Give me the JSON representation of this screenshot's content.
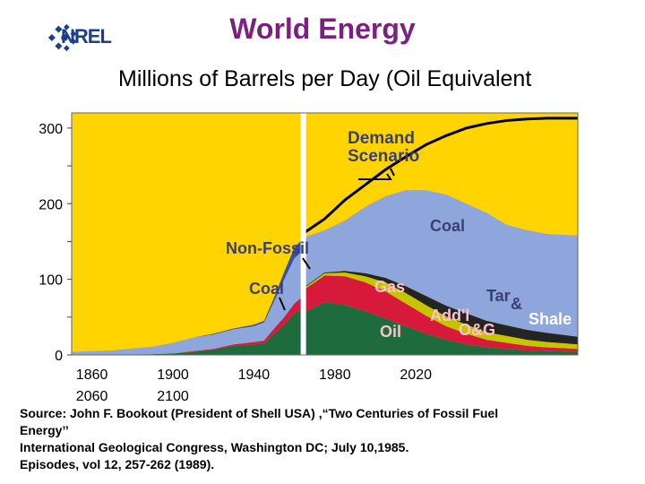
{
  "header": {
    "logo_text": "NREL",
    "title": "World Energy",
    "subtitle": "Millions of Barrels per Day (Oil Equivalent"
  },
  "chart_data": {
    "type": "area",
    "title": "World Energy",
    "ylabel": "Millions of Barrels per Day (Oil Equivalent",
    "ylim": [
      0,
      320
    ],
    "xlim": [
      1850,
      2100
    ],
    "y_ticks": [
      0,
      100,
      200,
      300
    ],
    "x_ticks": [
      1860,
      1900,
      1940,
      1980,
      2020
    ],
    "x_tick_labels_row1": [
      "1860",
      "1900",
      "1940",
      "1980",
      "2020"
    ],
    "x_tick_labels_row2": [
      "2060",
      "2100"
    ],
    "break_at": 1964,
    "historical": {
      "x": [
        1850,
        1870,
        1890,
        1900,
        1910,
        1920,
        1930,
        1940,
        1945,
        1950,
        1955,
        1960,
        1964
      ],
      "series": [
        {
          "name": "Oil",
          "values": [
            0,
            0,
            1,
            2,
            4,
            7,
            12,
            14,
            15,
            28,
            40,
            55,
            62
          ]
        },
        {
          "name": "Gas",
          "values": [
            0,
            0,
            0,
            0,
            1,
            1,
            2,
            3,
            4,
            7,
            10,
            13,
            15
          ]
        },
        {
          "name": "Coal",
          "values": [
            4,
            6,
            10,
            14,
            18,
            19,
            20,
            21,
            24,
            36,
            50,
            60,
            60
          ]
        },
        {
          "name": "Non-Fossil",
          "values": [
            0,
            0,
            0,
            0,
            0,
            1,
            1,
            2,
            2,
            5,
            10,
            14,
            16
          ]
        }
      ]
    },
    "scenario": {
      "x": [
        1964,
        1975,
        1985,
        1995,
        2005,
        2015,
        2025,
        2035,
        2045,
        2055,
        2065,
        2075,
        2085,
        2100
      ],
      "oil": [
        55,
        70,
        66,
        58,
        48,
        38,
        28,
        20,
        14,
        10,
        8,
        6,
        5,
        4
      ],
      "gas": [
        30,
        35,
        38,
        38,
        36,
        30,
        24,
        18,
        14,
        10,
        8,
        6,
        5,
        4
      ],
      "addl_og": [
        2,
        3,
        5,
        8,
        12,
        14,
        14,
        13,
        12,
        10,
        9,
        8,
        7,
        6
      ],
      "tar_shale": [
        1,
        1,
        2,
        4,
        6,
        9,
        12,
        14,
        15,
        15,
        14,
        13,
        12,
        10
      ],
      "coal_top": [
        155,
        165,
        178,
        196,
        210,
        218,
        218,
        212,
        200,
        188,
        172,
        165,
        160,
        158
      ],
      "demand": [
        160,
        180,
        205,
        225,
        245,
        262,
        278,
        290,
        300,
        306,
        310,
        312,
        313,
        313
      ]
    },
    "labels": [
      "Demand Scenario",
      "Coal",
      "Non-Fossil",
      "Coal",
      "Gas",
      "Tar",
      "&",
      "Shale",
      "Add'l",
      "O&G",
      "Oil"
    ],
    "colors": {
      "background": "#ffd400",
      "oil": "#1e6b3e",
      "gas": "#d7193c",
      "coal": "#8fa6dc",
      "coal_dark": "#5f7cc8",
      "non_fossil": "#3350b0",
      "addl_og": "#c4c400",
      "tar_shale": "#242424",
      "label_text": "#3a3f73"
    }
  },
  "source": {
    "line1": "Source: John F. Bookout (President of Shell USA) ,“Two Centuries of Fossil Fuel",
    "line2": "Energy’’",
    "line3": "International Geological Congress, Washington DC;  July 10,1985.",
    "line4": "Episodes, vol 12, 257-262 (1989)."
  }
}
